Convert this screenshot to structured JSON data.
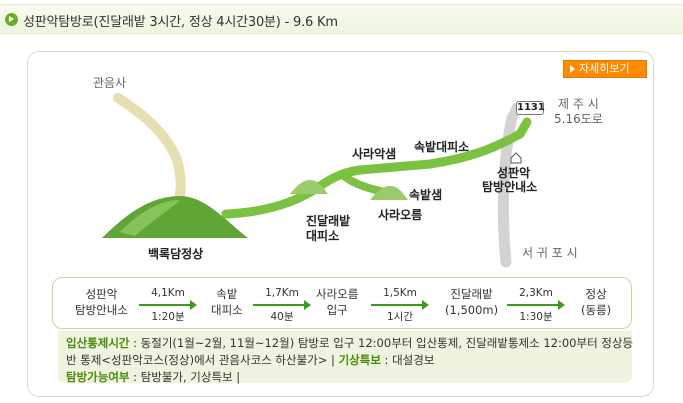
{
  "header": {
    "title": "성판악탐방로(진달래밭 3시간, 정상 4시간30분) - 9.6 Km",
    "icon": "arrow-bullet-icon",
    "accent_color": "#6eae22"
  },
  "detail_button": {
    "label": "자세히보기",
    "color": "#ff8a00"
  },
  "map": {
    "labels": {
      "gwaneumsa": "관음사",
      "summit": "백록담정상",
      "jindallaebat_shelter_1": "진달래밭",
      "jindallaebat_shelter_2": "대피소",
      "saraak_spring": "사라악샘",
      "sokbat_shelter": "속밭대피소",
      "sokbat_spring": "속밭샘",
      "sara_oreum": "사라오름",
      "seongpanak_center_1": "성판악",
      "seongpanak_center_2": "탐방안내소",
      "jeju_city": "제 주 시",
      "road_5_16": "5.16도로",
      "seogwipo_city": "서 귀 포 시",
      "road_number": "1131"
    },
    "colors": {
      "trail": "#7cc242",
      "other_trail": "#e6dfb0",
      "road": "#cfcfcf",
      "mountain": "#5fa637"
    }
  },
  "route": {
    "stops": [
      {
        "line1": "성판악",
        "line2": "탐방안내소"
      },
      {
        "line1": "속밭",
        "line2": "대피소"
      },
      {
        "line1": "사라오름",
        "line2": "입구"
      },
      {
        "line1": "진달래밭",
        "line2": "(1,500m)"
      },
      {
        "line1": "정상",
        "line2": "(동릉)"
      }
    ],
    "segments": [
      {
        "distance": "4,1Km",
        "time": "1:20분"
      },
      {
        "distance": "1,7Km",
        "time": "40분"
      },
      {
        "distance": "1,5Km",
        "time": "1시간"
      },
      {
        "distance": "2,3Km",
        "time": "1:30분"
      }
    ]
  },
  "info": {
    "entry_control_label": "입산통제시간",
    "entry_control_text_1": " : 동절기(1월~2월, 11월~12월) 탐방로 입구 12:00부터 입산통제, 진달래밭통제소 12:00부터 정상등",
    "entry_control_text_2": "반 통제<성판악코스(정상)에서 관음사코스 하산불가> | ",
    "weather_label": "기상특보",
    "weather_text": " : 대설경보",
    "availability_label": "탐방가능여부",
    "availability_text": " : 탐방불가, 기상특보 |"
  }
}
